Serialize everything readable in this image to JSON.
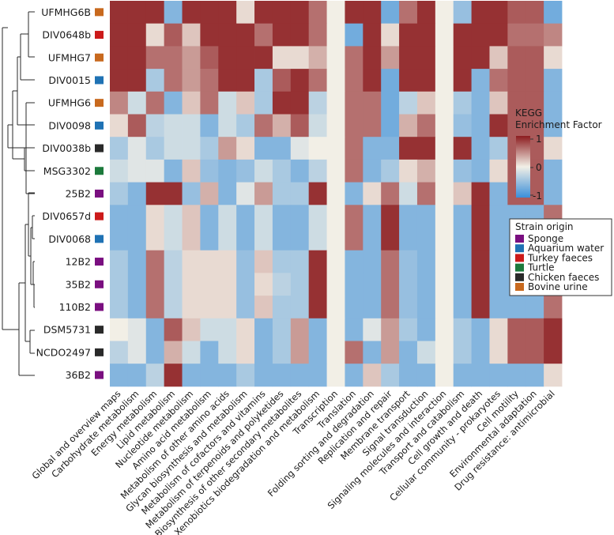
{
  "chart_data": {
    "type": "heatmap",
    "title": "",
    "rows": [
      "UFMHG6B",
      "DIV0648b",
      "UFMHG7",
      "DIV0015",
      "UFMHG6",
      "DIV0098",
      "DIV0038b",
      "MSG3302",
      "25B2",
      "DIV0657d",
      "DIV0068",
      "12B2",
      "35B2",
      "110B2",
      "DSM5731",
      "NCDO2497",
      "36B2"
    ],
    "row_origin": [
      "Bovine urine",
      "Turkey faeces",
      "Bovine urine",
      "Aquarium water",
      "Bovine urine",
      "Aquarium water",
      "Chicken faeces",
      "Turtle",
      "Sponge",
      "Turkey faeces",
      "Aquarium water",
      "Sponge",
      "Sponge",
      "Sponge",
      "Chicken faeces",
      "Chicken faeces",
      "Sponge"
    ],
    "columns": [
      "Global and overview maps",
      "Carbohydrate metabolism",
      "Energy metabolism",
      "Lipid metabolism",
      "Nucleotide metabolism",
      "Amino acid metabolism",
      "Metabolism of other amino acids",
      "Glycan biosynthesis and metabolism",
      "Metabolism of cofactors and vitamins",
      "Metabolism of terpenoids and polyketides",
      "Biosynthesis of other secondary metabolites",
      "Xenobiotics biodegradation and metabolism",
      "Transcription",
      "Translation",
      "Folding sorting and degradation",
      "Replication and repair",
      "Membrane transport",
      "Signal transduction",
      "Signaling molecules and interaction",
      "Transport and catabolism",
      "Cell growth and death",
      "Cellular community - prokaryotes",
      "Cell motility",
      "Environmental adaptation",
      "Drug resistance: antimicrobial"
    ],
    "values": [
      [
        0.9,
        0.9,
        0.9,
        -0.6,
        0.9,
        0.9,
        0.9,
        0.1,
        0.9,
        0.9,
        0.9,
        0.6,
        0.0,
        0.9,
        0.9,
        -0.7,
        0.6,
        0.9,
        0.0,
        -0.5,
        0.9,
        0.9,
        0.7,
        0.7,
        -0.7
      ],
      [
        0.9,
        0.9,
        0.1,
        0.7,
        0.2,
        0.9,
        0.9,
        0.9,
        0.6,
        0.9,
        0.9,
        0.6,
        0.0,
        -0.7,
        0.9,
        0.1,
        0.9,
        0.9,
        0.0,
        0.9,
        0.9,
        0.9,
        0.6,
        0.6,
        0.5
      ],
      [
        0.9,
        0.9,
        0.6,
        0.6,
        0.4,
        0.7,
        0.9,
        0.9,
        0.9,
        0.1,
        0.1,
        0.3,
        0.0,
        0.6,
        0.9,
        0.4,
        0.9,
        0.9,
        0.0,
        0.9,
        0.9,
        0.2,
        0.7,
        0.7,
        0.1
      ],
      [
        0.9,
        0.9,
        -0.4,
        0.6,
        0.4,
        0.6,
        0.9,
        0.9,
        -0.4,
        0.7,
        0.9,
        0.6,
        0.0,
        0.6,
        0.9,
        -0.7,
        0.9,
        0.9,
        0.0,
        0.9,
        -0.6,
        0.6,
        0.7,
        0.7,
        -0.6
      ],
      [
        0.5,
        -0.2,
        0.6,
        -0.6,
        0.2,
        0.6,
        -0.2,
        0.2,
        -0.4,
        0.9,
        0.9,
        -0.3,
        0.0,
        0.6,
        0.6,
        -0.7,
        -0.3,
        0.2,
        0.0,
        -0.4,
        -0.6,
        0.2,
        0.7,
        0.7,
        -0.6
      ],
      [
        0.1,
        0.7,
        -0.3,
        -0.2,
        -0.2,
        -0.6,
        -0.2,
        -0.4,
        0.6,
        0.3,
        0.7,
        -0.2,
        0.0,
        0.6,
        0.6,
        -0.7,
        0.3,
        0.6,
        0.0,
        -0.5,
        -0.6,
        0.9,
        0.7,
        0.7,
        -0.6
      ],
      [
        -0.4,
        -0.1,
        -0.4,
        -0.2,
        -0.2,
        -0.4,
        0.4,
        0.1,
        -0.6,
        -0.6,
        -0.1,
        0.0,
        0.0,
        0.6,
        -0.6,
        -0.6,
        0.9,
        0.9,
        0.0,
        0.9,
        -0.6,
        -0.4,
        0.7,
        0.7,
        0.1
      ],
      [
        -0.2,
        -0.1,
        -0.1,
        -0.6,
        0.2,
        -0.5,
        -0.6,
        -0.5,
        -0.2,
        -0.4,
        -0.6,
        -0.3,
        0.0,
        0.6,
        -0.6,
        -0.4,
        0.1,
        0.3,
        0.0,
        -0.5,
        -0.6,
        0.1,
        0.7,
        0.7,
        -0.6
      ],
      [
        -0.4,
        -0.6,
        0.9,
        0.9,
        -0.5,
        0.3,
        -0.6,
        -0.1,
        0.4,
        -0.4,
        -0.4,
        0.9,
        0.0,
        -0.6,
        0.1,
        0.6,
        -0.2,
        0.6,
        0.0,
        0.2,
        0.9,
        -0.6,
        0.7,
        0.7,
        -0.6
      ],
      [
        -0.6,
        -0.6,
        0.1,
        -0.2,
        0.2,
        -0.6,
        -0.2,
        -0.6,
        -0.2,
        -0.6,
        -0.6,
        -0.2,
        0.0,
        0.6,
        -0.6,
        0.9,
        -0.6,
        -0.6,
        0.0,
        -0.6,
        0.9,
        -0.6,
        -0.6,
        -0.6,
        0.6
      ],
      [
        -0.6,
        -0.6,
        0.1,
        -0.2,
        0.2,
        -0.6,
        -0.2,
        -0.6,
        -0.2,
        -0.6,
        -0.6,
        -0.2,
        0.0,
        0.6,
        -0.6,
        0.9,
        -0.6,
        -0.6,
        0.0,
        -0.6,
        0.9,
        -0.6,
        -0.6,
        -0.6,
        0.6
      ],
      [
        -0.4,
        -0.6,
        0.6,
        -0.3,
        0.1,
        0.1,
        0.1,
        -0.5,
        0.2,
        -0.4,
        -0.4,
        0.9,
        0.0,
        -0.6,
        -0.6,
        0.6,
        -0.5,
        -0.6,
        0.0,
        -0.6,
        0.9,
        -0.6,
        -0.6,
        -0.6,
        0.6
      ],
      [
        -0.4,
        -0.6,
        0.6,
        -0.3,
        0.1,
        0.1,
        0.1,
        -0.5,
        0.1,
        -0.3,
        -0.4,
        0.9,
        0.0,
        -0.6,
        -0.6,
        0.6,
        -0.5,
        -0.6,
        0.0,
        -0.6,
        0.9,
        -0.6,
        -0.6,
        -0.6,
        0.6
      ],
      [
        -0.4,
        -0.6,
        0.6,
        -0.3,
        0.1,
        0.1,
        0.1,
        -0.5,
        0.2,
        -0.4,
        -0.4,
        0.9,
        0.0,
        -0.6,
        -0.6,
        0.6,
        -0.5,
        -0.6,
        0.0,
        -0.6,
        0.9,
        -0.6,
        -0.6,
        -0.6,
        0.6
      ],
      [
        0.0,
        -0.1,
        -0.6,
        0.7,
        0.2,
        -0.2,
        -0.2,
        0.1,
        -0.6,
        -0.4,
        0.4,
        -0.6,
        0.0,
        -0.6,
        -0.1,
        0.4,
        -0.4,
        -0.6,
        0.0,
        -0.4,
        -0.6,
        0.1,
        0.7,
        0.7,
        0.9
      ],
      [
        -0.3,
        -0.1,
        -0.6,
        0.3,
        -0.2,
        -0.6,
        -0.2,
        0.1,
        -0.6,
        -0.4,
        0.4,
        -0.6,
        0.0,
        0.6,
        -0.6,
        0.4,
        -0.6,
        -0.2,
        0.0,
        -0.4,
        -0.6,
        0.1,
        0.7,
        0.7,
        0.9
      ],
      [
        -0.6,
        -0.6,
        -0.3,
        0.9,
        -0.6,
        -0.6,
        -0.6,
        -0.4,
        -0.6,
        -0.6,
        -0.6,
        -0.6,
        0.0,
        -0.6,
        0.2,
        -0.4,
        -0.6,
        -0.6,
        0.0,
        -0.6,
        -0.6,
        -0.6,
        -0.6,
        -0.6,
        0.1
      ]
    ],
    "value_range": [
      -1,
      1
    ],
    "colorbar": {
      "title_line1": "KEGG",
      "title_line2": "Enrichment Factor",
      "ticks": [
        "1",
        "0",
        "-1"
      ],
      "low_color": "#3b8fd9",
      "mid_color": "#f2efe6",
      "high_color": "#8c1c1f"
    },
    "origin_legend": {
      "title": "Strain origin",
      "entries": [
        {
          "label": "Sponge",
          "color": "#7a0f80"
        },
        {
          "label": "Aquarium water",
          "color": "#1f72b4"
        },
        {
          "label": "Turkey faeces",
          "color": "#cc1a1a"
        },
        {
          "label": "Turtle",
          "color": "#1c7a3c"
        },
        {
          "label": "Chicken faeces",
          "color": "#2a2a2a"
        },
        {
          "label": "Bovine urine",
          "color": "#c8691e"
        }
      ]
    },
    "dendrogram": "hierarchical clustering of strains (left)"
  }
}
